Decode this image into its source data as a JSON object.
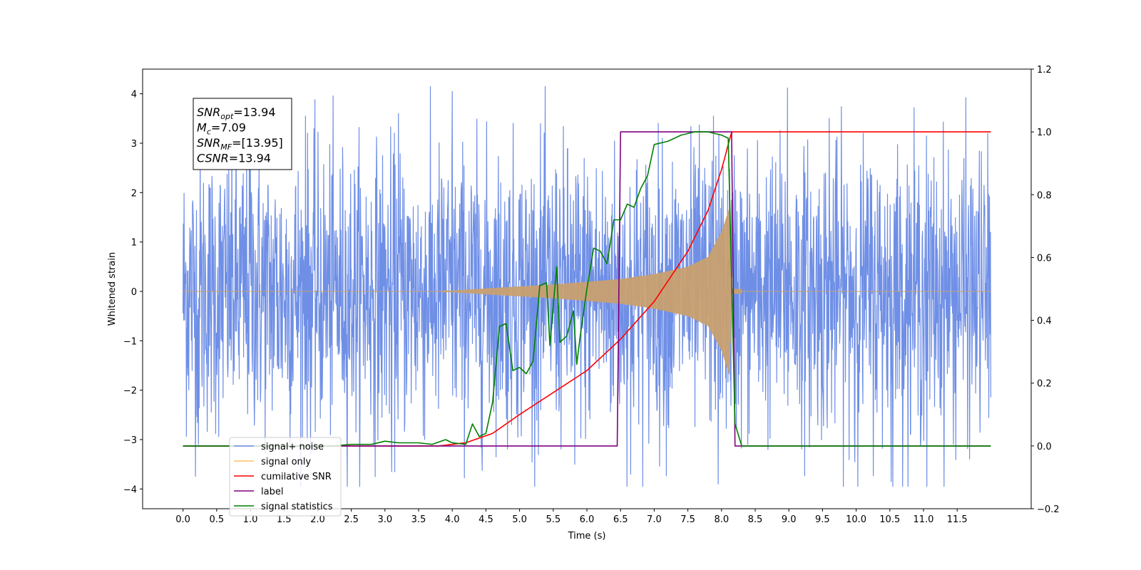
{
  "chart_data": {
    "type": "line",
    "title": "",
    "xlabel": "Time (s)",
    "ylabel": "Whitened strain",
    "xlim": [
      -0.6,
      12.6
    ],
    "ylim": [
      -4.4,
      4.5
    ],
    "y2lim": [
      -0.2,
      1.2
    ],
    "x_ticks": [
      0.0,
      0.5,
      1.0,
      1.5,
      2.0,
      2.5,
      3.0,
      3.5,
      4.0,
      4.5,
      5.0,
      5.5,
      6.0,
      6.5,
      7.0,
      7.5,
      8.0,
      8.5,
      9.0,
      9.5,
      10.0,
      10.5,
      11.0,
      11.5
    ],
    "x_tick_labels": [
      "0.0",
      "0.5",
      "1.0",
      "1.5",
      "2.0",
      "2.5",
      "3.0",
      "3.5",
      "4.0",
      "4.5",
      "5.0",
      "5.5",
      "6.0",
      "6.5",
      "7.0",
      "7.5",
      "8.0",
      "8.5",
      "9.0",
      "9.5",
      "10.0",
      "10.5",
      "11.0",
      "11.5"
    ],
    "y_ticks": [
      4,
      3,
      2,
      1,
      0,
      -1,
      -2,
      -3,
      -4
    ],
    "y_tick_labels": [
      "4",
      "3",
      "2",
      "1",
      "0",
      "−1",
      "−2",
      "−3",
      "−4"
    ],
    "y2_ticks": [
      1.2,
      1.0,
      0.8,
      0.6,
      0.4,
      0.2,
      0.0,
      -0.2
    ],
    "y2_tick_labels": [
      "1.2",
      "1.0",
      "0.8",
      "0.6",
      "0.4",
      "0.2",
      "0.0",
      "−0.2"
    ],
    "grid": false,
    "legend_placement": "lower-left",
    "annotation_box": {
      "lines": [
        {
          "base": "SNR",
          "sub": "opt",
          "rest": "=13.94"
        },
        {
          "base": "M",
          "sub": "c",
          "rest": "=7.09"
        },
        {
          "base": "SNR",
          "sub": "MF",
          "rest": "=[13.95]"
        },
        {
          "base": "CSNR",
          "sub": "",
          "rest": "=13.94"
        }
      ]
    },
    "series": [
      {
        "name": "signal+ noise",
        "axis": "left",
        "color": "#6f8fe6",
        "kind": "noise",
        "x_range": [
          0.0,
          12.0
        ],
        "approx_amplitude": 2.3,
        "peaks": [
          [
            4.0,
            4.05
          ],
          [
            8.98,
            4.12
          ],
          [
            1.82,
            3.55
          ],
          [
            3.2,
            3.6
          ],
          [
            7.88,
            3.55
          ],
          [
            9.6,
            3.5
          ],
          [
            0.23,
            -3.1
          ],
          [
            1.0,
            3.35
          ],
          [
            7.95,
            -3.9
          ],
          [
            11.05,
            -3.95
          ],
          [
            4.65,
            -3.35
          ],
          [
            6.65,
            -3.7
          ],
          [
            5.82,
            -3.5
          ],
          [
            3.1,
            -3.65
          ],
          [
            10.52,
            -3.85
          ],
          [
            9.98,
            -3.45
          ]
        ]
      },
      {
        "name": "signal only",
        "axis": "left",
        "color": "#c8a070",
        "kind": "chirp",
        "x_range": [
          0.0,
          12.0
        ],
        "chirp_start": 3.8,
        "merger": 8.15,
        "envelope": [
          [
            3.8,
            0.0
          ],
          [
            4.5,
            0.06
          ],
          [
            5.5,
            0.14
          ],
          [
            6.5,
            0.25
          ],
          [
            7.0,
            0.35
          ],
          [
            7.5,
            0.5
          ],
          [
            7.8,
            0.7
          ],
          [
            8.0,
            1.2
          ],
          [
            8.12,
            1.7
          ],
          [
            8.15,
            0.05
          ]
        ]
      },
      {
        "name": "cumilative SNR",
        "axis": "right",
        "color": "#ff0000",
        "points": [
          [
            0.0,
            0.0
          ],
          [
            3.8,
            0.0
          ],
          [
            4.2,
            0.01
          ],
          [
            4.6,
            0.04
          ],
          [
            5.0,
            0.1
          ],
          [
            5.5,
            0.17
          ],
          [
            6.0,
            0.24
          ],
          [
            6.5,
            0.34
          ],
          [
            7.0,
            0.46
          ],
          [
            7.5,
            0.62
          ],
          [
            7.8,
            0.75
          ],
          [
            8.0,
            0.88
          ],
          [
            8.1,
            0.96
          ],
          [
            8.15,
            1.0
          ],
          [
            12.0,
            1.0
          ]
        ]
      },
      {
        "name": "label",
        "axis": "right",
        "color": "#800080",
        "points": [
          [
            0.0,
            0.0
          ],
          [
            6.45,
            0.0
          ],
          [
            6.5,
            1.0
          ],
          [
            8.15,
            1.0
          ],
          [
            8.2,
            0.0
          ],
          [
            12.0,
            0.0
          ]
        ]
      },
      {
        "name": "signal statistics",
        "axis": "right",
        "color": "#008000",
        "points": [
          [
            0.0,
            0.0
          ],
          [
            2.2,
            0.0
          ],
          [
            2.5,
            0.005
          ],
          [
            2.8,
            0.005
          ],
          [
            3.0,
            0.015
          ],
          [
            3.2,
            0.01
          ],
          [
            3.5,
            0.01
          ],
          [
            3.7,
            0.005
          ],
          [
            3.9,
            0.02
          ],
          [
            4.0,
            0.01
          ],
          [
            4.2,
            0.005
          ],
          [
            4.3,
            0.07
          ],
          [
            4.4,
            0.03
          ],
          [
            4.5,
            0.04
          ],
          [
            4.6,
            0.14
          ],
          [
            4.7,
            0.38
          ],
          [
            4.8,
            0.39
          ],
          [
            4.9,
            0.24
          ],
          [
            5.0,
            0.25
          ],
          [
            5.1,
            0.23
          ],
          [
            5.2,
            0.27
          ],
          [
            5.3,
            0.51
          ],
          [
            5.4,
            0.52
          ],
          [
            5.45,
            0.32
          ],
          [
            5.55,
            0.57
          ],
          [
            5.6,
            0.33
          ],
          [
            5.7,
            0.35
          ],
          [
            5.8,
            0.43
          ],
          [
            5.85,
            0.26
          ],
          [
            5.9,
            0.35
          ],
          [
            6.0,
            0.5
          ],
          [
            6.1,
            0.63
          ],
          [
            6.2,
            0.62
          ],
          [
            6.3,
            0.58
          ],
          [
            6.4,
            0.72
          ],
          [
            6.5,
            0.72
          ],
          [
            6.6,
            0.77
          ],
          [
            6.7,
            0.76
          ],
          [
            6.8,
            0.82
          ],
          [
            6.9,
            0.86
          ],
          [
            7.0,
            0.96
          ],
          [
            7.2,
            0.97
          ],
          [
            7.4,
            0.99
          ],
          [
            7.6,
            1.0
          ],
          [
            7.8,
            1.0
          ],
          [
            8.0,
            0.99
          ],
          [
            8.1,
            0.98
          ],
          [
            8.2,
            0.07
          ],
          [
            8.3,
            0.0
          ],
          [
            12.0,
            0.0
          ]
        ]
      }
    ]
  }
}
